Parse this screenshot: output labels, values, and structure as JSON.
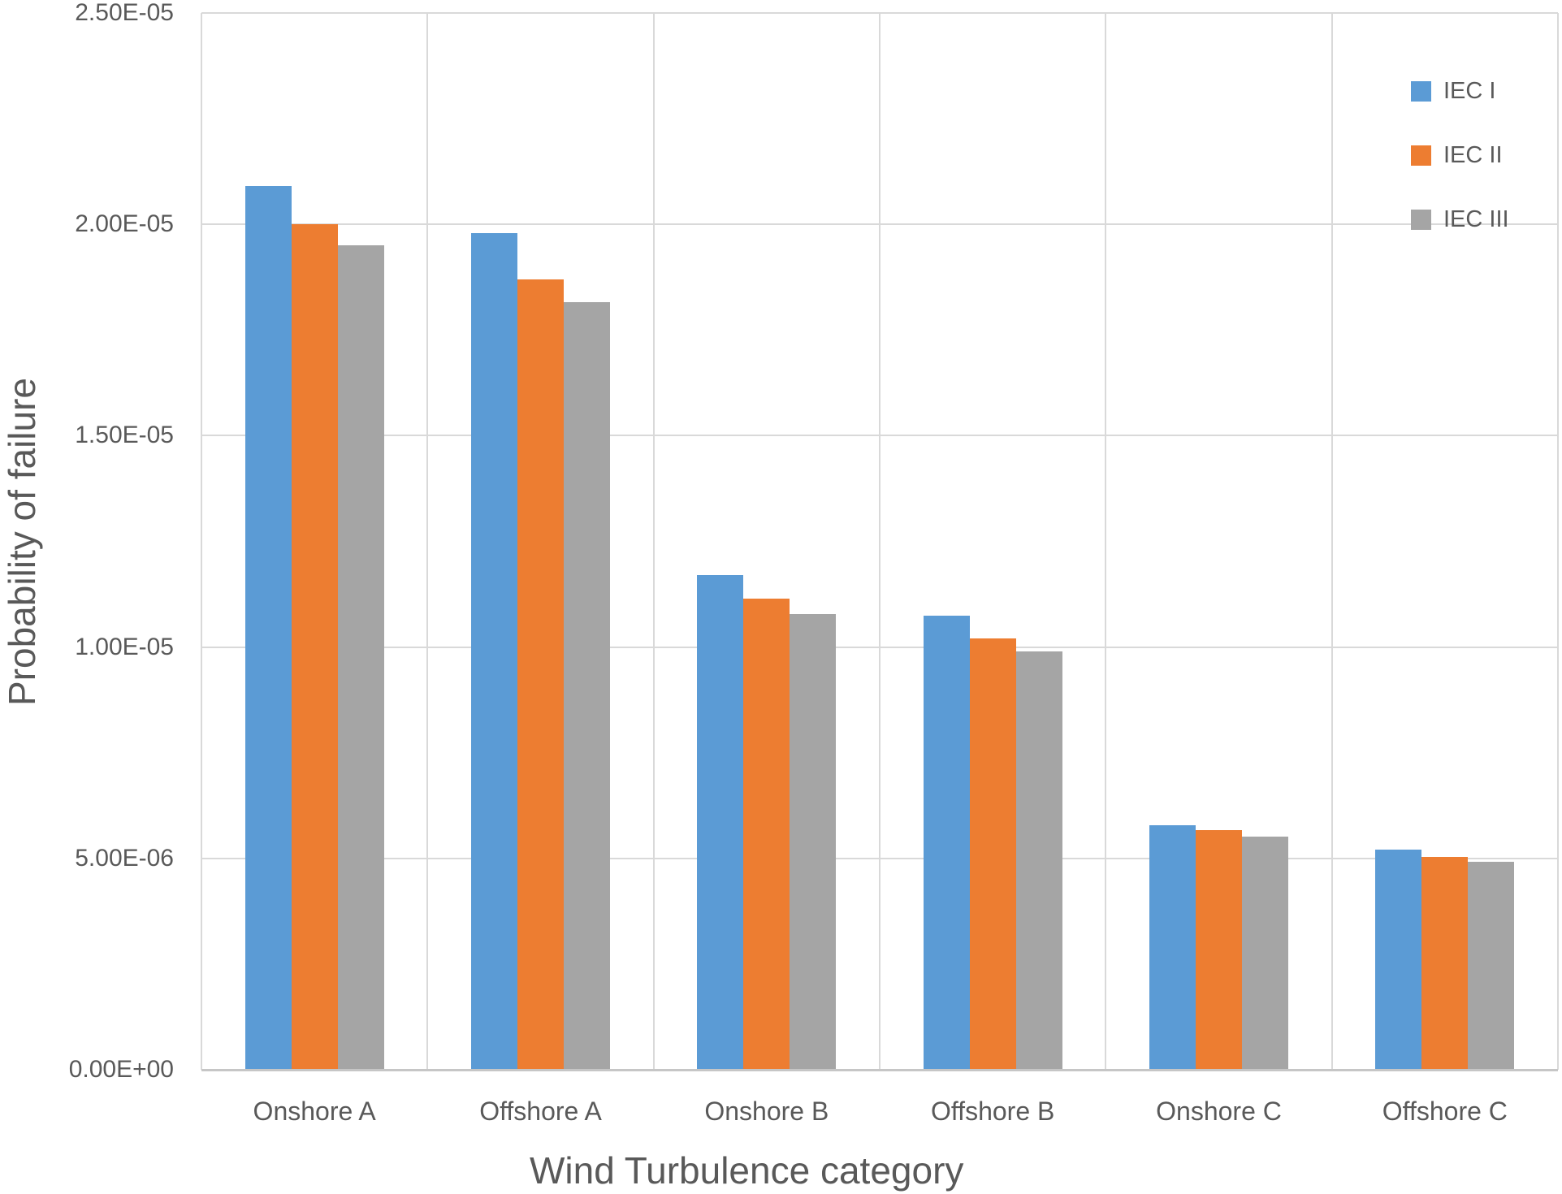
{
  "chart_data": {
    "type": "bar",
    "title": "",
    "xlabel": "Wind Turbulence category",
    "ylabel": "Probability of failure",
    "categories": [
      "Onshore A",
      "Offshore A",
      "Onshore B",
      "Offshore B",
      "Onshore C",
      "Offshore C"
    ],
    "series": [
      {
        "name": "IEC I",
        "color": "#5B9BD5",
        "values": [
          2.09e-05,
          1.98e-05,
          1.17e-05,
          1.075e-05,
          5.78e-06,
          5.21e-06
        ]
      },
      {
        "name": "IEC II",
        "color": "#ED7D31",
        "values": [
          2e-05,
          1.87e-05,
          1.115e-05,
          1.021e-05,
          5.67e-06,
          5.03e-06
        ]
      },
      {
        "name": "IEC III",
        "color": "#A5A5A5",
        "values": [
          1.95e-05,
          1.815e-05,
          1.078e-05,
          9.9e-06,
          5.51e-06,
          4.92e-06
        ]
      }
    ],
    "y_axis": {
      "min": 0,
      "max": 2.5e-05,
      "ticks": [
        {
          "value": 0,
          "label": "0.00E+00"
        },
        {
          "value": 5e-06,
          "label": "5.00E-06"
        },
        {
          "value": 1e-05,
          "label": "1.00E-05"
        },
        {
          "value": 1.5e-05,
          "label": "1.50E-05"
        },
        {
          "value": 2e-05,
          "label": "2.00E-05"
        },
        {
          "value": 2.5e-05,
          "label": "2.50E-05"
        }
      ]
    },
    "legend": {
      "position": "top-right",
      "entries": [
        "IEC I",
        "IEC II",
        "IEC III"
      ]
    },
    "grid": true
  },
  "colors": {
    "text": "#595959",
    "gridline": "#D9D9D9",
    "axis_line": "#C6C6C6",
    "background": "#FFFFFF"
  }
}
